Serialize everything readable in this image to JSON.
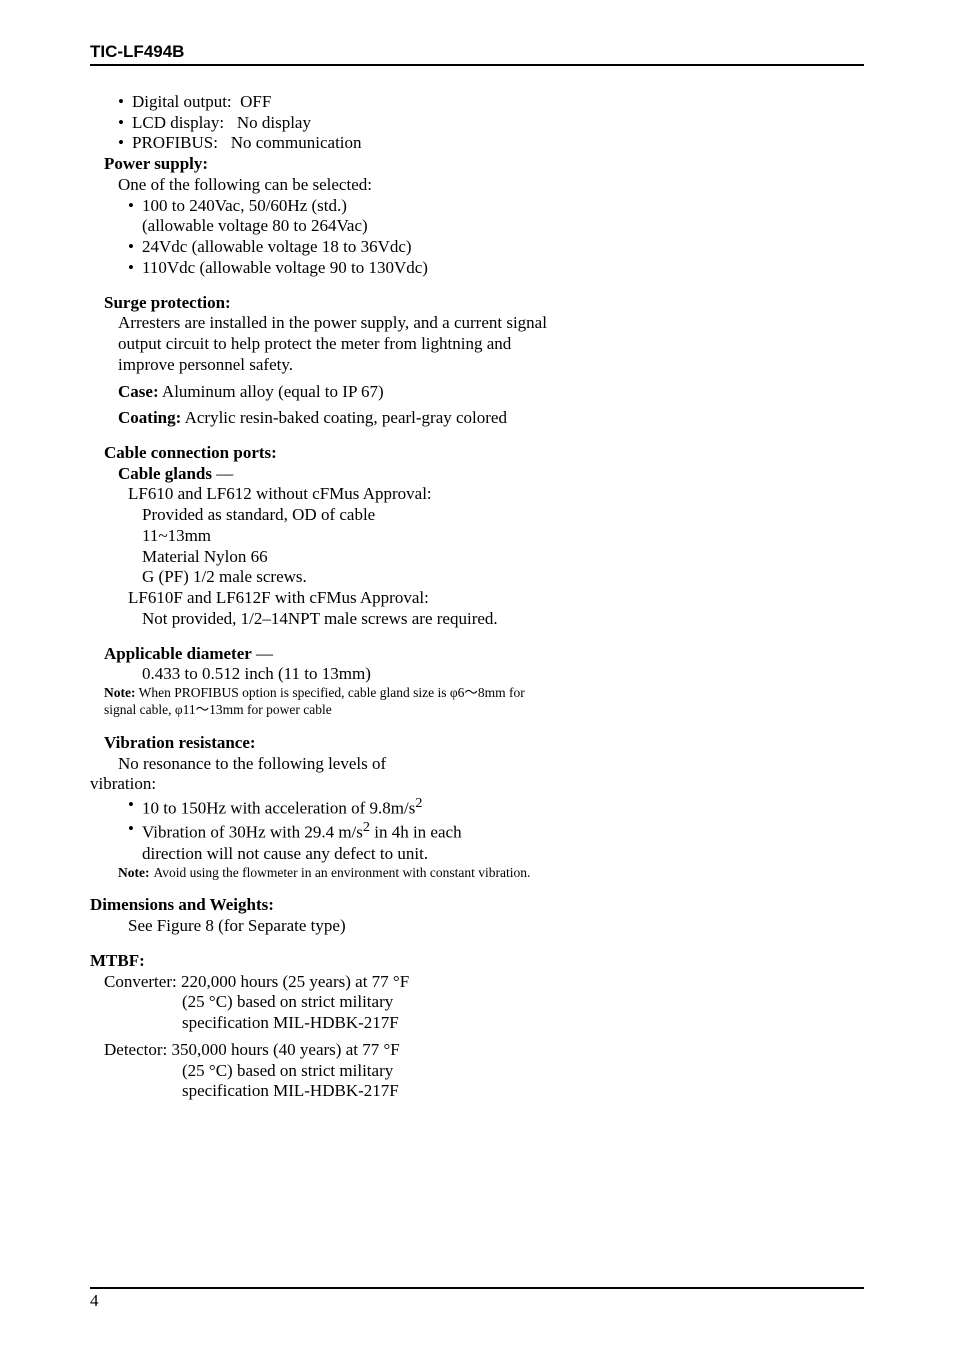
{
  "header": {
    "title": "TIC-LF494B"
  },
  "footer": {
    "page": "4"
  },
  "outputs": {
    "digital": {
      "label": "Digital output:",
      "value": "OFF"
    },
    "lcd": {
      "label": "LCD display:",
      "value": "No display"
    },
    "profibus": {
      "label": "PROFIBUS:",
      "value": "No communication"
    }
  },
  "power": {
    "heading": "Power supply:",
    "intro": "One of the following can be selected:",
    "items": [
      {
        "l1": "100 to 240Vac, 50/60Hz (std.)",
        "l2": "(allowable voltage 80 to 264Vac)"
      },
      {
        "l1": "24Vdc (allowable voltage 18 to 36Vdc)"
      },
      {
        "l1": "110Vdc (allowable voltage 90 to 130Vdc)"
      }
    ]
  },
  "surge": {
    "heading": "Surge protection:",
    "body": "Arresters are installed in the power supply, and a current signal output circuit to help protect the meter from lightning and improve personnel safety."
  },
  "caseSpec": {
    "label": "Case:",
    "value": "Aluminum alloy (equal to IP 67)"
  },
  "coating": {
    "label": "Coating:",
    "value": "Acrylic resin-baked coating, pearl-gray colored"
  },
  "cable": {
    "heading": "Cable connection ports:",
    "glands_label": "Cable glands",
    "dash": "—",
    "without_title": "LF610 and LF612 without cFMus Approval:",
    "without_lines": [
      "Provided as standard, OD of cable",
      "11~13mm",
      "Material Nylon 66",
      "G (PF) 1/2 male screws."
    ],
    "with_title": "LF610F and LF612F with cFMus Approval:",
    "with_lines": [
      "Not provided, 1/2–14NPT male screws are required."
    ]
  },
  "diameter": {
    "heading": "Applicable diameter",
    "dash": "—",
    "value": "0.433 to 0.512 inch (11 to 13mm)",
    "note_label": "Note:",
    "note_body": "When PROFIBUS option is specified, cable gland size is φ6～8mm for signal cable, φ11～13mm for power cable"
  },
  "vibration": {
    "heading": "Vibration resistance:",
    "intro": "No resonance to the following levels of",
    "intro2": "vibration:",
    "items": [
      "10 to 150Hz with acceleration of 9.8m/s",
      "Vibration of 30Hz with 29.4 m/s"
    ],
    "sup": "2",
    "item2_cont": " in 4h in each",
    "item2_line2": "direction will not cause any defect to unit.",
    "note_label": "Note:",
    "note_body": "Avoid using the flowmeter in an environment with constant vibration."
  },
  "dims": {
    "heading": "Dimensions and Weights:",
    "body": "See Figure 8 (for Separate type)"
  },
  "mtbf": {
    "heading": "MTBF:",
    "conv_l1": "Converter: 220,000 hours (25 years) at 77 °F",
    "conv_l2": "(25 °C) based on strict military",
    "conv_l3": "specification MIL-HDBK-217F",
    "det_l1": "Detector: 350,000 hours (40 years) at 77 °F",
    "det_l2": "(25 °C) based on strict military",
    "det_l3": "specification MIL-HDBK-217F"
  }
}
